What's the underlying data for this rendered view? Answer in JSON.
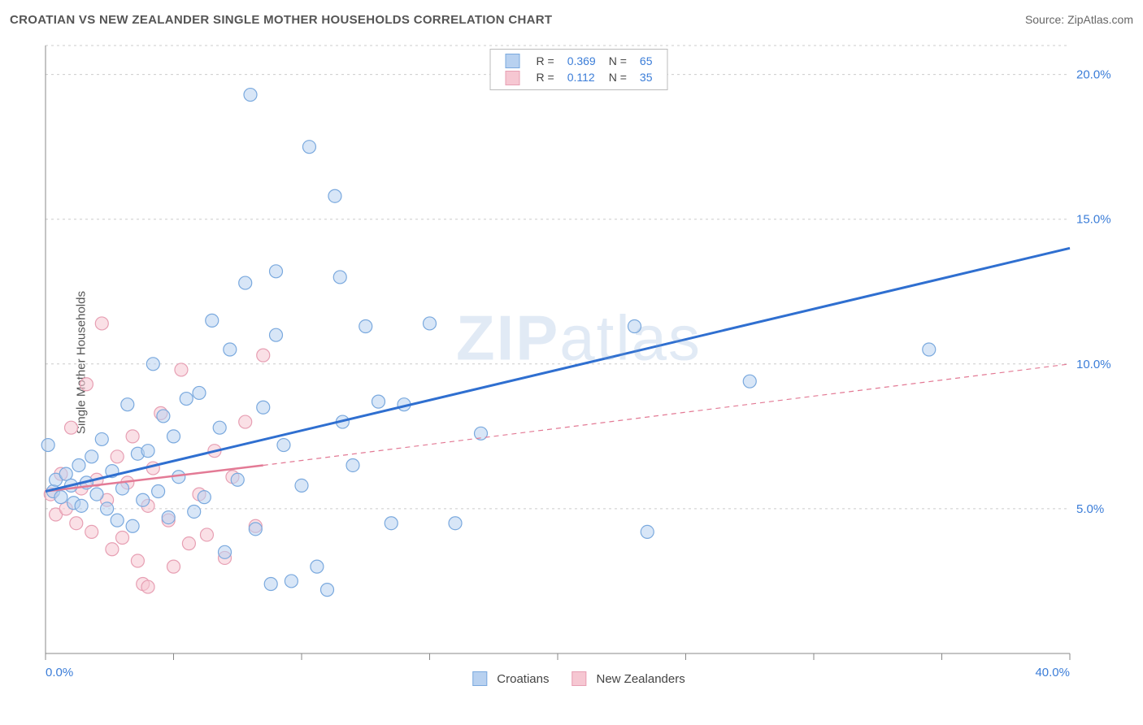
{
  "header": {
    "title": "CROATIAN VS NEW ZEALANDER SINGLE MOTHER HOUSEHOLDS CORRELATION CHART",
    "source_prefix": "Source: ",
    "source": "ZipAtlas.com"
  },
  "chart": {
    "type": "scatter",
    "y_axis_label": "Single Mother Households",
    "background_color": "#ffffff",
    "grid_color": "#cccccc",
    "axis_color": "#888888",
    "xlim": [
      0,
      40
    ],
    "ylim": [
      0,
      21
    ],
    "x_ticks": [
      0,
      5,
      10,
      15,
      20,
      25,
      30,
      35,
      40
    ],
    "x_tick_labels": {
      "0": "0.0%",
      "40": "40.0%"
    },
    "y_gridlines": [
      5,
      10,
      15,
      20
    ],
    "y_tick_labels": {
      "5": "5.0%",
      "10": "10.0%",
      "15": "15.0%",
      "20": "20.0%"
    },
    "tick_label_color": "#3b7dd8",
    "tick_label_fontsize": 15,
    "marker_radius": 8,
    "marker_stroke_width": 1.2,
    "watermark": "ZIPatlas",
    "series": [
      {
        "name": "Croatians",
        "fill": "#b8d1f0",
        "stroke": "#7aa9de",
        "fill_opacity": 0.55,
        "r_value": "0.369",
        "n_value": "65",
        "trend": {
          "x1": 0,
          "y1": 5.6,
          "x2": 40,
          "y2": 14.0,
          "color": "#2f6fd0",
          "width": 3,
          "dash": "none"
        },
        "points": [
          [
            0.1,
            7.2
          ],
          [
            0.3,
            5.6
          ],
          [
            0.4,
            6.0
          ],
          [
            0.6,
            5.4
          ],
          [
            0.8,
            6.2
          ],
          [
            1.0,
            5.8
          ],
          [
            1.1,
            5.2
          ],
          [
            1.3,
            6.5
          ],
          [
            1.4,
            5.1
          ],
          [
            1.6,
            5.9
          ],
          [
            1.8,
            6.8
          ],
          [
            2.0,
            5.5
          ],
          [
            2.2,
            7.4
          ],
          [
            2.4,
            5.0
          ],
          [
            2.6,
            6.3
          ],
          [
            2.8,
            4.6
          ],
          [
            3.0,
            5.7
          ],
          [
            3.2,
            8.6
          ],
          [
            3.4,
            4.4
          ],
          [
            3.6,
            6.9
          ],
          [
            3.8,
            5.3
          ],
          [
            4.0,
            7.0
          ],
          [
            4.2,
            10.0
          ],
          [
            4.4,
            5.6
          ],
          [
            4.6,
            8.2
          ],
          [
            4.8,
            4.7
          ],
          [
            5.0,
            7.5
          ],
          [
            5.2,
            6.1
          ],
          [
            5.5,
            8.8
          ],
          [
            5.8,
            4.9
          ],
          [
            6.0,
            9.0
          ],
          [
            6.2,
            5.4
          ],
          [
            6.5,
            11.5
          ],
          [
            6.8,
            7.8
          ],
          [
            7.0,
            3.5
          ],
          [
            7.2,
            10.5
          ],
          [
            7.5,
            6.0
          ],
          [
            7.8,
            12.8
          ],
          [
            8.0,
            19.3
          ],
          [
            8.2,
            4.3
          ],
          [
            8.5,
            8.5
          ],
          [
            8.8,
            2.4
          ],
          [
            9.0,
            11.0
          ],
          [
            9.3,
            7.2
          ],
          [
            9.6,
            2.5
          ],
          [
            10.0,
            5.8
          ],
          [
            10.3,
            17.5
          ],
          [
            10.6,
            3.0
          ],
          [
            11.0,
            2.2
          ],
          [
            11.3,
            15.8
          ],
          [
            11.6,
            8.0
          ],
          [
            12.0,
            6.5
          ],
          [
            12.5,
            11.3
          ],
          [
            13.0,
            8.7
          ],
          [
            13.5,
            4.5
          ],
          [
            14.0,
            8.6
          ],
          [
            15.0,
            11.4
          ],
          [
            16.0,
            4.5
          ],
          [
            17.0,
            7.6
          ],
          [
            23.0,
            11.3
          ],
          [
            23.5,
            4.2
          ],
          [
            27.5,
            9.4
          ],
          [
            34.5,
            10.5
          ],
          [
            11.5,
            13.0
          ],
          [
            9.0,
            13.2
          ]
        ]
      },
      {
        "name": "New Zealanders",
        "fill": "#f6c7d2",
        "stroke": "#e79fb3",
        "fill_opacity": 0.55,
        "r_value": "0.112",
        "n_value": "35",
        "trend_solid": {
          "x1": 0,
          "y1": 5.6,
          "x2": 8.5,
          "y2": 6.5,
          "color": "#e37a95",
          "width": 2.5
        },
        "trend_dash": {
          "x1": 8.5,
          "y1": 6.5,
          "x2": 40,
          "y2": 10.0,
          "color": "#e37a95",
          "width": 1.2,
          "dash": "6 5"
        },
        "points": [
          [
            0.2,
            5.5
          ],
          [
            0.4,
            4.8
          ],
          [
            0.6,
            6.2
          ],
          [
            0.8,
            5.0
          ],
          [
            1.0,
            7.8
          ],
          [
            1.2,
            4.5
          ],
          [
            1.4,
            5.7
          ],
          [
            1.6,
            9.3
          ],
          [
            1.8,
            4.2
          ],
          [
            2.0,
            6.0
          ],
          [
            2.2,
            11.4
          ],
          [
            2.4,
            5.3
          ],
          [
            2.6,
            3.6
          ],
          [
            2.8,
            6.8
          ],
          [
            3.0,
            4.0
          ],
          [
            3.2,
            5.9
          ],
          [
            3.4,
            7.5
          ],
          [
            3.6,
            3.2
          ],
          [
            3.8,
            2.4
          ],
          [
            4.0,
            5.1
          ],
          [
            4.2,
            6.4
          ],
          [
            4.5,
            8.3
          ],
          [
            4.8,
            4.6
          ],
          [
            5.0,
            3.0
          ],
          [
            5.3,
            9.8
          ],
          [
            5.6,
            3.8
          ],
          [
            6.0,
            5.5
          ],
          [
            6.3,
            4.1
          ],
          [
            6.6,
            7.0
          ],
          [
            7.0,
            3.3
          ],
          [
            7.3,
            6.1
          ],
          [
            7.8,
            8.0
          ],
          [
            8.2,
            4.4
          ],
          [
            8.5,
            10.3
          ],
          [
            4.0,
            2.3
          ]
        ]
      }
    ],
    "legend_bottom": [
      {
        "label": "Croatians",
        "fill": "#b8d1f0",
        "stroke": "#7aa9de"
      },
      {
        "label": "New Zealanders",
        "fill": "#f6c7d2",
        "stroke": "#e79fb3"
      }
    ],
    "legend_top_labels": {
      "r": "R =",
      "n": "N ="
    }
  }
}
